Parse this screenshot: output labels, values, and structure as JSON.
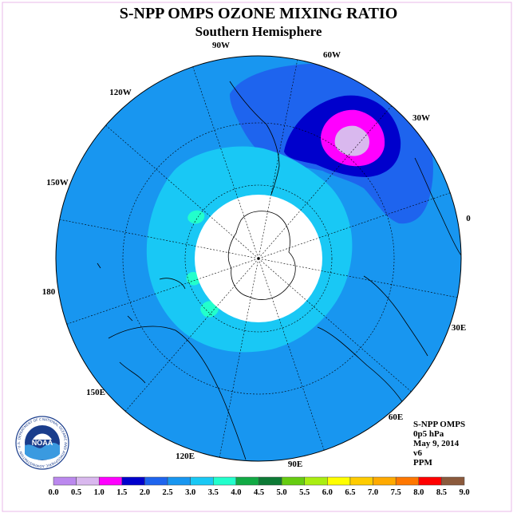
{
  "title": "S-NPP OMPS OZONE MIXING RATIO",
  "subtitle": "Southern Hemisphere",
  "info": {
    "instrument": "S-NPP OMPS",
    "level": "0p5 hPa",
    "date": "May 9, 2014",
    "version": "v6",
    "units": "PPM"
  },
  "logo": {
    "text": "NOAA",
    "ring_text": "NATIONAL OCEANIC AND ATMOSPHERIC ADMINISTRATION · U.S. DEPARTMENT OF COMMERCE"
  },
  "longitude_labels": [
    {
      "text": "90W"
    },
    {
      "text": "60W"
    },
    {
      "text": "30W"
    },
    {
      "text": "0"
    },
    {
      "text": "30E"
    },
    {
      "text": "60E"
    },
    {
      "text": "90E"
    },
    {
      "text": "120E"
    },
    {
      "text": "150E"
    },
    {
      "text": "180"
    },
    {
      "text": "150W"
    },
    {
      "text": "120W"
    }
  ],
  "colorbar": {
    "ticks": [
      "0.0",
      "0.5",
      "1.0",
      "1.5",
      "2.0",
      "2.5",
      "3.0",
      "3.5",
      "4.0",
      "4.5",
      "5.0",
      "5.5",
      "6.0",
      "6.5",
      "7.0",
      "7.5",
      "8.0",
      "8.5",
      "9.0"
    ],
    "colors": [
      "#bb88ee",
      "#d9b8ee",
      "#ff00ff",
      "#0000cc",
      "#1e64ee",
      "#1896f0",
      "#19c8f5",
      "#22ffcc",
      "#11aa44",
      "#0d7a35",
      "#66cc11",
      "#aaee11",
      "#ffff00",
      "#ffcc00",
      "#ffaa00",
      "#ff7700",
      "#ff0000",
      "#8b5a3c"
    ]
  },
  "chart_data": {
    "type": "heatmap",
    "projection": "south polar stereographic",
    "title": "S-NPP OMPS OZONE MIXING RATIO",
    "subtitle": "Southern Hemisphere",
    "units": "PPM",
    "colorbar_range": [
      0.0,
      9.0
    ],
    "colorbar_step": 0.5,
    "dominant_value_range": [
      2.5,
      3.0
    ],
    "features": [
      {
        "region": "around the polar data gap",
        "range": [
          3.0,
          3.5
        ]
      },
      {
        "region": "small patches near 150W-180",
        "range": [
          3.5,
          4.0
        ]
      },
      {
        "region": "southern South America / Atlantic, 60W-30W",
        "range": [
          2.0,
          2.5
        ]
      },
      {
        "region": "core of low near 45W",
        "range": [
          1.5,
          2.0
        ]
      },
      {
        "region": "minimum near 45W",
        "range": [
          0.5,
          1.0
        ]
      }
    ],
    "no_data": "polar cap"
  }
}
